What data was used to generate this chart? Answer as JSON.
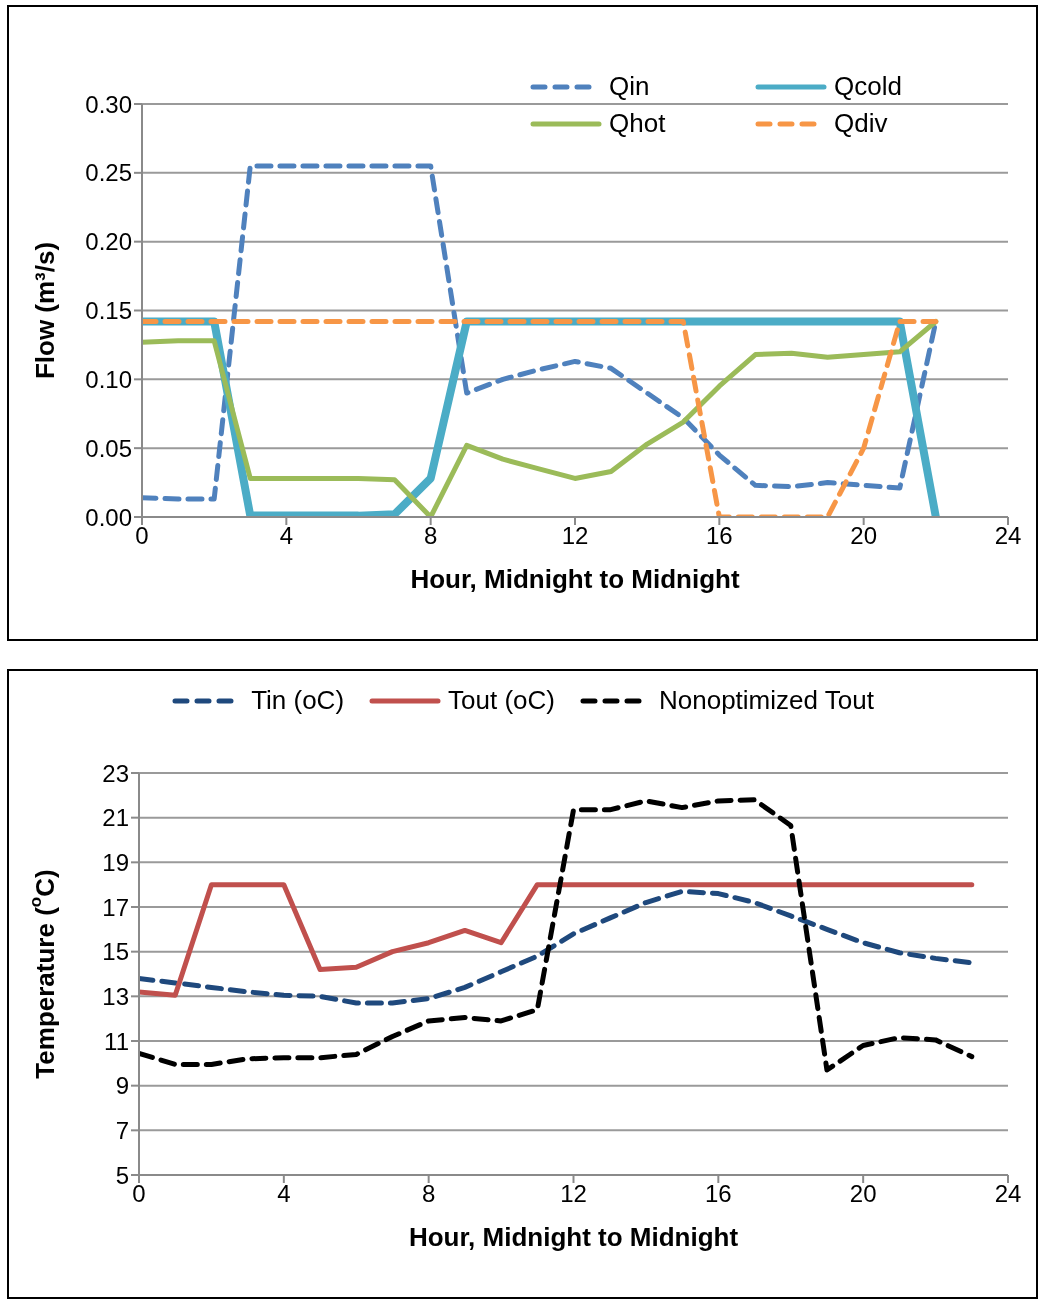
{
  "chart_data": [
    {
      "type": "line",
      "xlabel": "Hour, Midnight to Midnight",
      "ylabel": "Flow (m³/s)",
      "x": [
        0,
        1,
        2,
        3,
        4,
        5,
        6,
        7,
        8,
        9,
        10,
        11,
        12,
        13,
        14,
        15,
        16,
        17,
        18,
        19,
        20,
        21,
        22
      ],
      "xlim": [
        0,
        24
      ],
      "xticks": [
        0,
        4,
        8,
        12,
        16,
        20,
        24
      ],
      "ylim": [
        0,
        0.3
      ],
      "yticks": [
        {
          "value": 0,
          "label": "0.00"
        },
        {
          "value": 0.05,
          "label": "0.05"
        },
        {
          "value": 0.1,
          "label": "0.10"
        },
        {
          "value": 0.15,
          "label": "0.15"
        },
        {
          "value": 0.2,
          "label": "0.20"
        },
        {
          "value": 0.25,
          "label": "0.25"
        },
        {
          "value": 0.3,
          "label": "0.30"
        }
      ],
      "grid": "y",
      "legend": "top right",
      "marker": "none",
      "series": [
        {
          "name": "Qin",
          "color": "#4f81bd",
          "line_style": "dashed",
          "values": [
            0.014,
            0.013,
            0.013,
            0.255,
            0.255,
            0.255,
            0.255,
            0.255,
            0.255,
            0.09,
            0.1,
            0.107,
            0.113,
            0.108,
            0.09,
            0.072,
            0.045,
            0.023,
            0.022,
            0.025,
            0.023,
            0.021,
            0.142
          ]
        },
        {
          "name": "Qcold",
          "color": "#4bacc6",
          "line_style": "solid",
          "values": [
            0.142,
            0.142,
            0.142,
            0.001,
            0.001,
            0.001,
            0.001,
            0.002,
            0.028,
            0.142,
            0.142,
            0.142,
            0.142,
            0.142,
            0.142,
            0.142,
            0.142,
            0.142,
            0.142,
            0.142,
            0.142,
            0.142,
            0
          ]
        },
        {
          "name": "Qhot",
          "color": "#9bbb59",
          "line_style": "solid",
          "values": [
            0.127,
            0.128,
            0.128,
            0.028,
            0.028,
            0.028,
            0.028,
            0.027,
            0,
            0.052,
            0.042,
            0.035,
            0.028,
            0.033,
            0.053,
            0.069,
            0.095,
            0.118,
            0.119,
            0.116,
            0.118,
            0.12,
            0.142
          ]
        },
        {
          "name": "Qdiv",
          "color": "#f79646",
          "line_style": "dashed",
          "values": [
            0.142,
            0.142,
            0.142,
            0.142,
            0.142,
            0.142,
            0.142,
            0.142,
            0.142,
            0.142,
            0.142,
            0.142,
            0.142,
            0.142,
            0.142,
            0.142,
            0,
            0,
            0,
            0,
            0.05,
            0.142,
            0.142
          ]
        }
      ]
    },
    {
      "type": "line",
      "xlabel": "Hour, Midnight to Midnight",
      "ylabel": "Temperature ($^{o}$C)",
      "x": [
        0,
        1,
        2,
        3,
        4,
        5,
        6,
        7,
        8,
        9,
        10,
        11,
        12,
        13,
        14,
        15,
        16,
        17,
        18,
        19,
        20,
        21,
        22,
        23
      ],
      "xlim": [
        0,
        24
      ],
      "xticks": [
        0,
        4,
        8,
        12,
        16,
        20,
        24
      ],
      "ylim": [
        5,
        23
      ],
      "yticks": [
        5,
        7,
        9,
        11,
        13,
        15,
        17,
        19,
        21,
        23
      ],
      "grid": "y",
      "legend": "top",
      "marker": "none",
      "series": [
        {
          "name": "Tin (oC)",
          "color": "#1f497d",
          "line_style": "dashed",
          "values": [
            13.8,
            13.6,
            13.4,
            13.2,
            13.05,
            13.0,
            12.7,
            12.7,
            12.9,
            13.4,
            14.1,
            14.8,
            15.8,
            16.5,
            17.2,
            17.7,
            17.6,
            17.2,
            16.6,
            16.0,
            15.4,
            14.95,
            14.7,
            14.5
          ]
        },
        {
          "name": "Tout (oC)",
          "color": "#c0504d",
          "line_style": "solid",
          "values": [
            13.2,
            13.05,
            18,
            18,
            18,
            14.2,
            14.3,
            15.0,
            15.4,
            15.95,
            15.4,
            18,
            18,
            18,
            18,
            18,
            18,
            18,
            18,
            18,
            18,
            18,
            18,
            18
          ]
        },
        {
          "name": "Nonoptimized Tout",
          "color": "#000000",
          "line_style": "dashed",
          "values": [
            10.45,
            9.95,
            9.95,
            10.2,
            10.25,
            10.25,
            10.4,
            11.2,
            11.9,
            12.05,
            11.9,
            12.4,
            21.35,
            21.35,
            21.75,
            21.45,
            21.75,
            21.8,
            20.65,
            9.7,
            10.8,
            11.15,
            11.05,
            10.3
          ]
        }
      ]
    }
  ]
}
